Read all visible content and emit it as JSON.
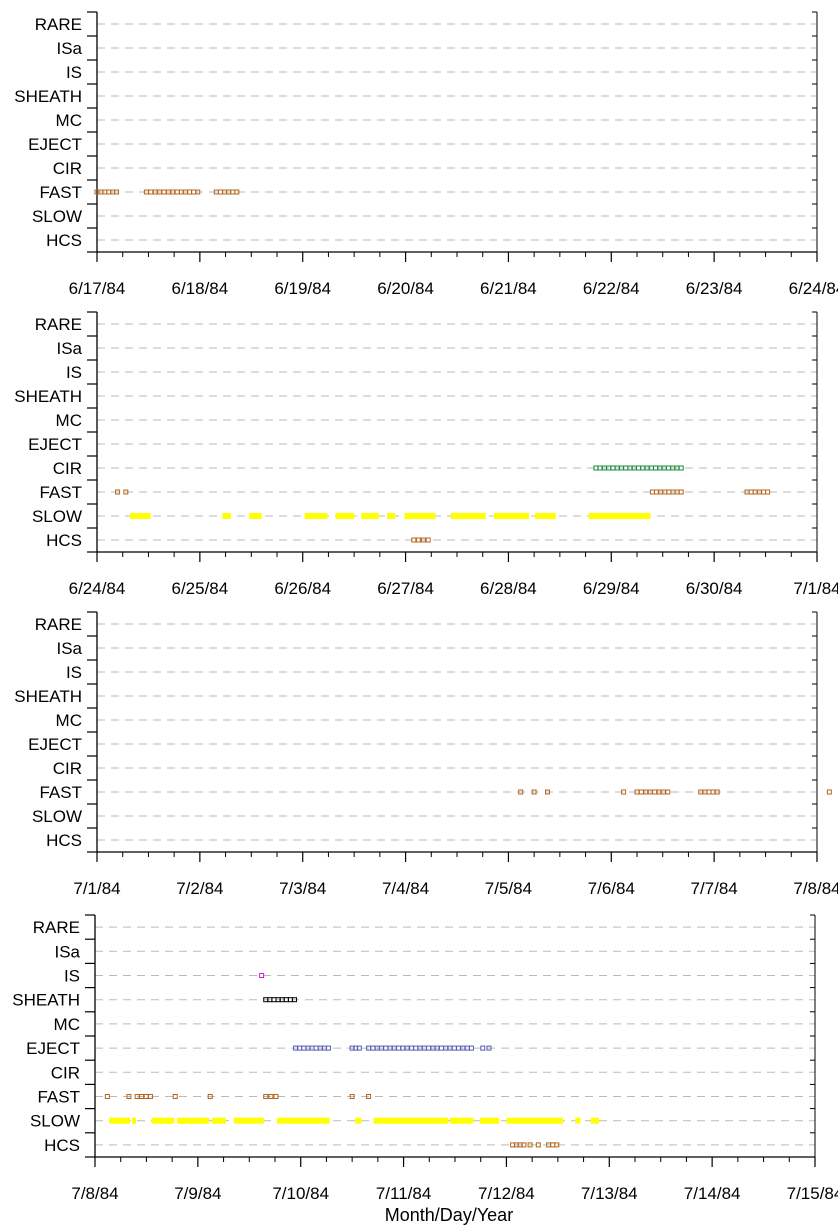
{
  "chart_data": {
    "type": "scatter",
    "xlabel": "Month/Day/Year",
    "categories": [
      "HCS",
      "SLOW",
      "FAST",
      "CIR",
      "EJECT",
      "MC",
      "SHEATH",
      "IS",
      "ISa",
      "RARE"
    ],
    "colors": {
      "FAST": "#b5651d",
      "HCS": "#b5651d",
      "SLOW": "#ffff00",
      "CIR": "#1a8c3c",
      "EJECT": "#5a5ab4",
      "SHEATH": "#000000",
      "IS": "#cc22cc",
      "grid": "#bbbbbb"
    },
    "panels": [
      {
        "x_ticks": [
          "6/17/84",
          "6/18/84",
          "6/19/84",
          "6/20/84",
          "6/21/84",
          "6/22/84",
          "6/23/84",
          "6/24/84"
        ],
        "series": [
          {
            "category": "FAST",
            "style": "box",
            "segments": [
              [
                0.0,
                0.19
              ],
              [
                0.48,
                0.78
              ],
              [
                0.82,
                0.98
              ],
              [
                1.16,
                1.36
              ]
            ]
          }
        ]
      },
      {
        "x_ticks": [
          "6/24/84",
          "6/25/84",
          "6/26/84",
          "6/27/84",
          "6/28/84",
          "6/29/84",
          "6/30/84",
          "7/1/84"
        ],
        "series": [
          {
            "category": "FAST",
            "style": "box",
            "segments": [
              [
                0.2,
                0.2
              ],
              [
                0.28,
                0.28
              ],
              [
                5.4,
                5.68
              ],
              [
                6.32,
                6.52
              ]
            ]
          },
          {
            "category": "SLOW",
            "style": "bar",
            "segments": [
              [
                0.32,
                0.52
              ],
              [
                1.22,
                1.3
              ],
              [
                1.48,
                1.6
              ],
              [
                2.02,
                2.24
              ],
              [
                2.32,
                2.5
              ],
              [
                2.57,
                2.74
              ],
              [
                2.82,
                2.9
              ],
              [
                2.99,
                3.29
              ],
              [
                3.44,
                3.78
              ],
              [
                3.86,
                4.2
              ],
              [
                4.26,
                4.46
              ],
              [
                4.78,
                5.38
              ]
            ]
          },
          {
            "category": "CIR",
            "style": "box",
            "segments": [
              [
                4.85,
                5.68
              ]
            ]
          },
          {
            "category": "HCS",
            "style": "box",
            "segments": [
              [
                3.08,
                3.22
              ]
            ]
          }
        ]
      },
      {
        "x_ticks": [
          "7/1/84",
          "7/2/84",
          "7/3/84",
          "7/4/84",
          "7/5/84",
          "7/6/84",
          "7/7/84",
          "7/8/84"
        ],
        "series": [
          {
            "category": "FAST",
            "style": "box",
            "segments": [
              [
                4.12,
                4.12
              ],
              [
                4.25,
                4.25
              ],
              [
                4.38,
                4.38
              ],
              [
                5.12,
                5.12
              ],
              [
                5.25,
                5.55
              ],
              [
                5.87,
                6.03
              ],
              [
                7.12,
                7.12
              ]
            ]
          }
        ]
      },
      {
        "x_ticks": [
          "7/8/84",
          "7/9/84",
          "7/10/84",
          "7/11/84",
          "7/12/84",
          "7/13/84",
          "7/14/84",
          "7/15/84"
        ],
        "series": [
          {
            "category": "FAST",
            "style": "box",
            "segments": [
              [
                0.12,
                0.12
              ],
              [
                0.33,
                0.33
              ],
              [
                0.41,
                0.54
              ],
              [
                0.78,
                0.78
              ],
              [
                1.12,
                1.12
              ],
              [
                1.66,
                1.76
              ],
              [
                2.5,
                2.5
              ],
              [
                2.66,
                2.66
              ]
            ]
          },
          {
            "category": "SLOW",
            "style": "bar",
            "segments": [
              [
                0.14,
                0.34
              ],
              [
                0.36,
                0.4
              ],
              [
                0.55,
                0.77
              ],
              [
                0.8,
                1.11
              ],
              [
                1.14,
                1.27
              ],
              [
                1.35,
                1.64
              ],
              [
                1.77,
                2.28
              ],
              [
                2.53,
                2.59
              ],
              [
                2.71,
                3.43
              ],
              [
                3.45,
                3.68
              ],
              [
                3.74,
                3.93
              ],
              [
                4.0,
                4.55
              ],
              [
                4.67,
                4.72
              ],
              [
                4.82,
                4.9
              ]
            ]
          },
          {
            "category": "EJECT",
            "style": "box",
            "segments": [
              [
                1.95,
                2.27
              ],
              [
                2.5,
                2.57
              ],
              [
                2.66,
                3.66
              ],
              [
                3.77,
                3.83
              ]
            ]
          },
          {
            "category": "SHEATH",
            "style": "box",
            "segments": [
              [
                1.66,
                1.94
              ]
            ]
          },
          {
            "category": "IS",
            "style": "box",
            "segments": [
              [
                1.62,
                1.62
              ]
            ]
          },
          {
            "category": "HCS",
            "style": "box",
            "segments": [
              [
                4.06,
                4.17
              ],
              [
                4.23,
                4.23
              ],
              [
                4.31,
                4.31
              ],
              [
                4.41,
                4.49
              ]
            ]
          }
        ]
      }
    ]
  }
}
